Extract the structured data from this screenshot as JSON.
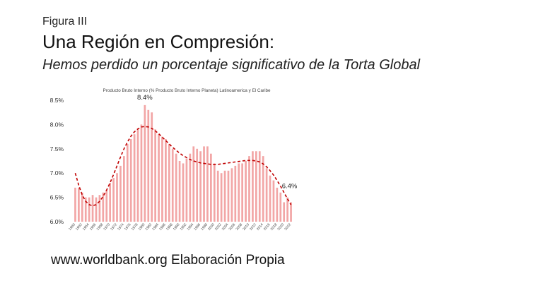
{
  "header": {
    "figure_label": "Figura III",
    "title": "Una Región en Compresión:",
    "subtitle": "Hemos perdido un porcentaje significativo de la Torta Global"
  },
  "footer": {
    "source": "www.worldbank.org Elaboración Propia"
  },
  "colors": {
    "bar": "#f2a6a6",
    "trend": "#c00000",
    "text": "#111111"
  },
  "chart_data": {
    "type": "bar",
    "title": "Producto Bruto Interno  (% Producto Bruto Interno Planeta) Latinoamerica y El Caribe",
    "xlabel": "",
    "ylabel": "",
    "ylim": [
      6.0,
      8.5
    ],
    "yticks": [
      "6.0%",
      "6.5%",
      "7.0%",
      "7.5%",
      "8.0%",
      "8.5%"
    ],
    "grid": false,
    "x": [
      1960,
      1961,
      1962,
      1963,
      1964,
      1965,
      1966,
      1967,
      1968,
      1969,
      1970,
      1971,
      1972,
      1973,
      1974,
      1975,
      1976,
      1977,
      1978,
      1979,
      1980,
      1981,
      1982,
      1983,
      1984,
      1985,
      1986,
      1987,
      1988,
      1989,
      1990,
      1991,
      1992,
      1993,
      1994,
      1995,
      1996,
      1997,
      1998,
      1999,
      2000,
      2001,
      2002,
      2003,
      2004,
      2005,
      2006,
      2007,
      2008,
      2009,
      2010,
      2011,
      2012,
      2013,
      2014,
      2015,
      2016,
      2017,
      2018,
      2019,
      2020,
      2021,
      2022
    ],
    "xtick_labels": [
      "1960",
      "1962",
      "1964",
      "1966",
      "1968",
      "1970",
      "1972",
      "1974",
      "1976",
      "1978",
      "1980",
      "1982",
      "1984",
      "1986",
      "1988",
      "1990",
      "1992",
      "1994",
      "1996",
      "1998",
      "2000",
      "2002",
      "2004",
      "2006",
      "2008",
      "2010",
      "2012",
      "2014",
      "2016",
      "2018",
      "2020",
      "2022"
    ],
    "values": [
      6.7,
      6.7,
      6.6,
      6.5,
      6.5,
      6.55,
      6.5,
      6.55,
      6.6,
      6.65,
      6.8,
      6.9,
      7.0,
      7.15,
      7.35,
      7.6,
      7.7,
      7.8,
      7.9,
      8.0,
      8.4,
      8.3,
      8.25,
      7.9,
      7.8,
      7.75,
      7.7,
      7.6,
      7.5,
      7.4,
      7.25,
      7.2,
      7.3,
      7.4,
      7.55,
      7.5,
      7.45,
      7.55,
      7.55,
      7.4,
      7.2,
      7.05,
      7.0,
      7.05,
      7.05,
      7.1,
      7.15,
      7.2,
      7.2,
      7.25,
      7.35,
      7.45,
      7.45,
      7.45,
      7.35,
      7.1,
      6.95,
      6.85,
      6.7,
      6.6,
      6.4,
      6.5,
      6.4
    ],
    "trend": [
      7.0,
      6.75,
      6.55,
      6.42,
      6.35,
      6.33,
      6.35,
      6.42,
      6.52,
      6.65,
      6.8,
      6.97,
      7.15,
      7.33,
      7.5,
      7.64,
      7.76,
      7.85,
      7.91,
      7.95,
      7.96,
      7.95,
      7.92,
      7.87,
      7.81,
      7.74,
      7.67,
      7.6,
      7.53,
      7.47,
      7.41,
      7.36,
      7.32,
      7.28,
      7.25,
      7.23,
      7.21,
      7.2,
      7.19,
      7.18,
      7.18,
      7.18,
      7.19,
      7.2,
      7.21,
      7.22,
      7.23,
      7.24,
      7.25,
      7.26,
      7.26,
      7.26,
      7.25,
      7.23,
      7.19,
      7.13,
      7.05,
      6.96,
      6.85,
      6.73,
      6.6,
      6.47,
      6.35
    ],
    "annotations": [
      {
        "label": "8.4%",
        "x": 1980,
        "y": 8.4
      },
      {
        "label": "6.4%",
        "x": 2022,
        "y": 6.4
      }
    ]
  }
}
